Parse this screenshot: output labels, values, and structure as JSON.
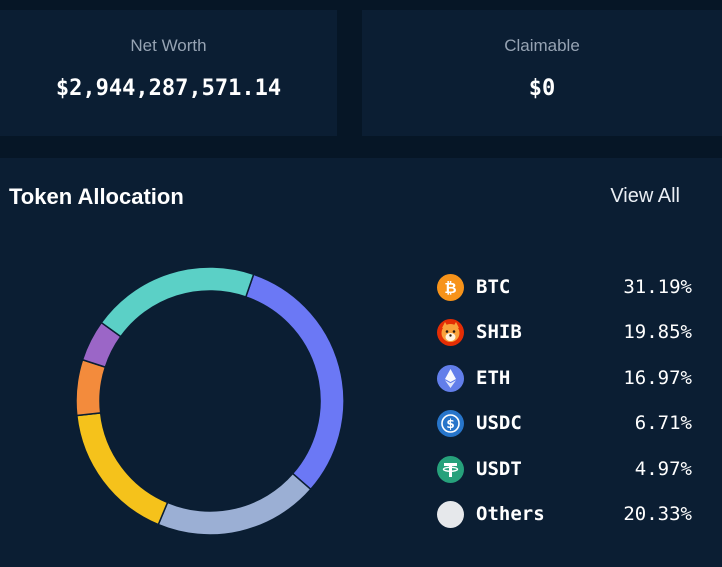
{
  "net_worth": {
    "label": "Net Worth",
    "value": "$2,944,287,571.14"
  },
  "claimable": {
    "label": "Claimable",
    "value": "$0"
  },
  "allocation": {
    "title": "Token Allocation",
    "view_all": "View All",
    "tokens": [
      {
        "symbol": "BTC",
        "percent": "31.19%",
        "share": 31.19,
        "color": "#6b78f5",
        "icon": "btc-icon"
      },
      {
        "symbol": "SHIB",
        "percent": "19.85%",
        "share": 19.85,
        "color": "#9bafd4",
        "icon": "shib-icon"
      },
      {
        "symbol": "ETH",
        "percent": "16.97%",
        "share": 16.97,
        "color": "#f5c21b",
        "icon": "eth-icon"
      },
      {
        "symbol": "USDC",
        "percent": "6.71%",
        "share": 6.71,
        "color": "#f38b3c",
        "icon": "usdc-icon"
      },
      {
        "symbol": "USDT",
        "percent": "4.97%",
        "share": 4.97,
        "color": "#9b66c7",
        "icon": "usdt-icon"
      },
      {
        "symbol": "Others",
        "percent": "20.33%",
        "share": 20.33,
        "color": "#5bd0c6",
        "icon": "others-icon"
      }
    ]
  },
  "chart_data": {
    "type": "pie",
    "title": "Token Allocation",
    "categories": [
      "BTC",
      "SHIB",
      "ETH",
      "USDC",
      "USDT",
      "Others"
    ],
    "values": [
      31.19,
      19.85,
      16.97,
      6.71,
      4.97,
      20.33
    ]
  }
}
